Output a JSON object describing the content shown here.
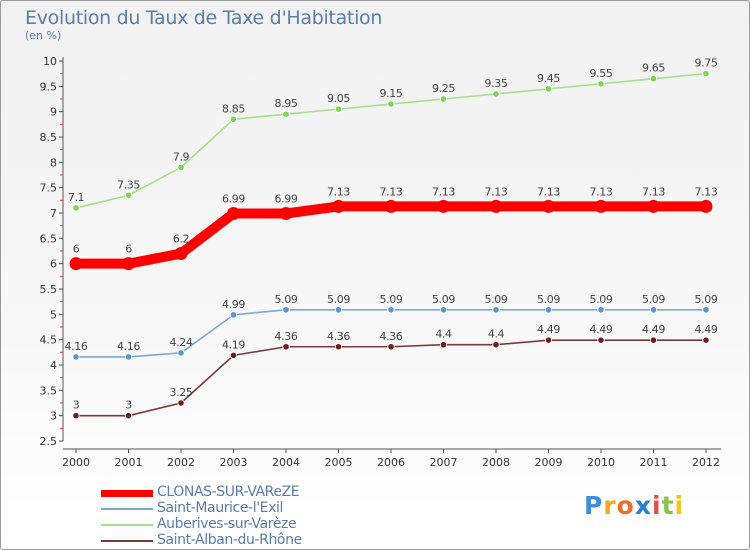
{
  "header": {
    "title": "Evolution du Taux de Taxe d'Habitation",
    "unit": "(en %)"
  },
  "chart_data": {
    "type": "line",
    "x": [
      "2000",
      "2001",
      "2002",
      "2003",
      "2004",
      "2005",
      "2006",
      "2007",
      "2008",
      "2009",
      "2010",
      "2011",
      "2012"
    ],
    "ylim": [
      2.5,
      10
    ],
    "yticks": [
      "2.5",
      "3",
      "3.5",
      "4",
      "4.5",
      "5",
      "5.5",
      "6",
      "6.5",
      "7",
      "7.5",
      "8",
      "8.5",
      "9",
      "9.5",
      "10"
    ],
    "grid": false,
    "legend_position": "bottom-left",
    "series": [
      {
        "name": "CLONAS-SUR-VAReZE",
        "color": "#ff0000",
        "main": true,
        "values": [
          6,
          6,
          6.2,
          6.99,
          6.99,
          7.13,
          7.13,
          7.13,
          7.13,
          7.13,
          7.13,
          7.13,
          7.13
        ],
        "labels": [
          "6",
          "6",
          "6.2",
          "6.99",
          "6.99",
          "7.13",
          "7.13",
          "7.13",
          "7.13",
          "7.13",
          "7.13",
          "7.13",
          "7.13"
        ]
      },
      {
        "name": "Saint-Maurice-l'Exil",
        "color": "#7aaad4",
        "point_color": "#5b95d0",
        "values": [
          4.16,
          4.16,
          4.24,
          4.99,
          5.09,
          5.09,
          5.09,
          5.09,
          5.09,
          5.09,
          5.09,
          5.09,
          5.09
        ],
        "labels": [
          "4.16",
          "4.16",
          "4.24",
          "4.99",
          "5.09",
          "5.09",
          "5.09",
          "5.09",
          "5.09",
          "5.09",
          "5.09",
          "5.09",
          "5.09"
        ]
      },
      {
        "name": "Auberives-sur-Varèze",
        "color": "#a6e08c",
        "point_color": "#7cd452",
        "values": [
          7.1,
          7.35,
          7.9,
          8.85,
          8.95,
          9.05,
          9.15,
          9.25,
          9.35,
          9.45,
          9.55,
          9.65,
          9.75
        ],
        "labels": [
          "7.1",
          "7.35",
          "7.9",
          "8.85",
          "8.95",
          "9.05",
          "9.15",
          "9.25",
          "9.35",
          "9.45",
          "9.55",
          "9.65",
          "9.75"
        ]
      },
      {
        "name": "Saint-Alban-du-Rhône",
        "color": "#7a3a3a",
        "point_color": "#6a1e1e",
        "values": [
          3,
          3,
          3.25,
          4.19,
          4.36,
          4.36,
          4.36,
          4.4,
          4.4,
          4.49,
          4.49,
          4.49,
          4.49
        ],
        "labels": [
          "3",
          "3",
          "3.25",
          "4.19",
          "4.36",
          "4.36",
          "4.36",
          "4.4",
          "4.4",
          "4.49",
          "4.49",
          "4.49",
          "4.49"
        ]
      }
    ]
  },
  "logo": {
    "letters": [
      "P",
      "r",
      "o",
      "x",
      "i",
      "t",
      "i"
    ],
    "colors": [
      "#3b8ed8",
      "#f5a623",
      "#e8702a",
      "#2b7fd4",
      "#e24e4e",
      "#8bc34a",
      "#f5c518"
    ]
  }
}
